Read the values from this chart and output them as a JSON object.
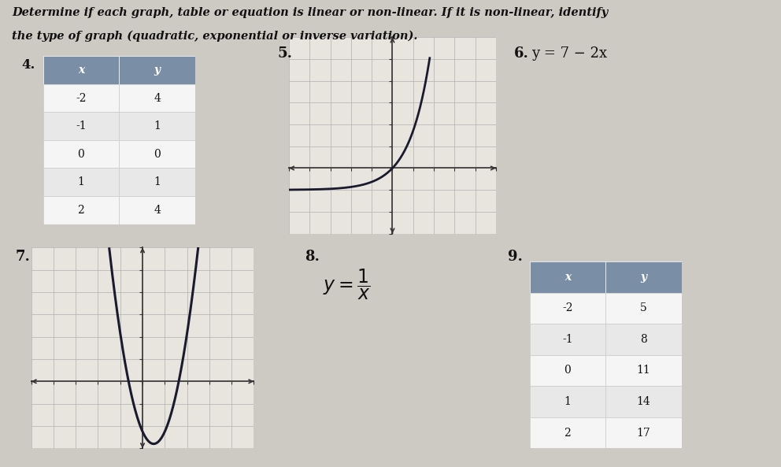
{
  "title_line1": "Determine if each graph, table or equation is linear or non-linear. If it is non-linear, identify",
  "title_line2": "the type of graph (quadratic, exponential or inverse variation).",
  "bg_color": "#cdc9c3",
  "table4_header": [
    "x",
    "y"
  ],
  "table4_data": [
    [
      -2,
      4
    ],
    [
      -1,
      1
    ],
    [
      0,
      0
    ],
    [
      1,
      1
    ],
    [
      2,
      4
    ]
  ],
  "table4_header_color": "#7a8fa6",
  "table4_row_colors": [
    "#f5f5f5",
    "#e8e8e8"
  ],
  "label4": "4.",
  "label5": "5.",
  "label6": "6.",
  "label7": "7.",
  "label8": "8.",
  "label9": "9.",
  "eq6": "y = 7 − 2x",
  "table9_header": [
    "x",
    "y"
  ],
  "table9_data": [
    [
      -2,
      5
    ],
    [
      -1,
      8
    ],
    [
      0,
      11
    ],
    [
      1,
      14
    ],
    [
      2,
      17
    ]
  ],
  "table9_header_color": "#7a8fa6",
  "table9_row_colors": [
    "#f5f5f5",
    "#e8e8e8"
  ],
  "graph5_color": "#1a1a2e",
  "graph7_color": "#1a1a2e",
  "grid_color": "#b0b0b0",
  "axis_color": "#333333",
  "font_color": "#111111",
  "title_fontsize": 10.5,
  "label_fontsize": 12,
  "eq_fontsize": 12
}
